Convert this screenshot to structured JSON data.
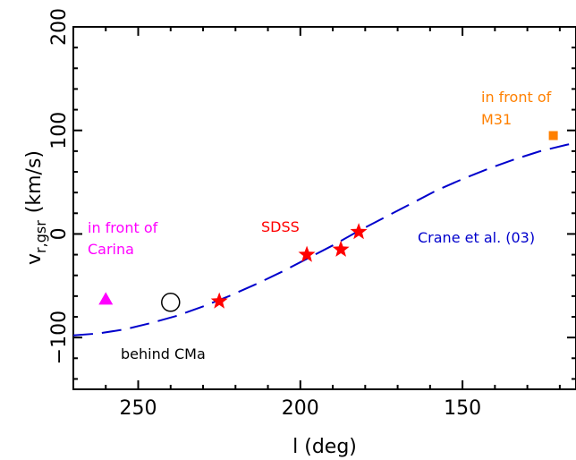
{
  "chart_data": {
    "type": "scatter",
    "xlabel": "l (deg)",
    "ylabel_main": "v",
    "ylabel_sub": "r,gsr",
    "ylabel_unit": "(km/s)",
    "xlim": [
      270,
      115
    ],
    "ylim": [
      -150,
      200
    ],
    "x_ticks": [
      250,
      200,
      150
    ],
    "y_ticks": [
      -100,
      0,
      100,
      200
    ],
    "x_tick_labels": [
      "250",
      "200",
      "150"
    ],
    "y_tick_labels": [
      "−100",
      "0",
      "100",
      "200"
    ],
    "grid": false,
    "series": [
      {
        "name": "SDSS",
        "marker": "star",
        "color": "#ff0000",
        "points": [
          {
            "x": 225,
            "y": -65
          },
          {
            "x": 198,
            "y": -20
          },
          {
            "x": 187.5,
            "y": -15
          },
          {
            "x": 182,
            "y": 2
          }
        ]
      },
      {
        "name": "in front of Carina",
        "marker": "triangle",
        "color": "#ff00ff",
        "points": [
          {
            "x": 260,
            "y": -63
          }
        ]
      },
      {
        "name": "behind CMa",
        "marker": "open-circle",
        "color": "#000000",
        "points": [
          {
            "x": 240,
            "y": -66
          }
        ]
      },
      {
        "name": "in front of M31",
        "marker": "square",
        "color": "#ff8000",
        "points": [
          {
            "x": 122,
            "y": 95
          }
        ]
      }
    ],
    "model_curve": {
      "name": "Crane et al. (03)",
      "style": "dashed",
      "color": "#0000cc",
      "points": [
        {
          "x": 270,
          "y": -98
        },
        {
          "x": 262,
          "y": -96
        },
        {
          "x": 254,
          "y": -92
        },
        {
          "x": 246,
          "y": -86
        },
        {
          "x": 238,
          "y": -79
        },
        {
          "x": 230,
          "y": -70
        },
        {
          "x": 222,
          "y": -60
        },
        {
          "x": 214,
          "y": -49
        },
        {
          "x": 206,
          "y": -37
        },
        {
          "x": 198,
          "y": -24
        },
        {
          "x": 190,
          "y": -11
        },
        {
          "x": 182,
          "y": 3
        },
        {
          "x": 174,
          "y": 16
        },
        {
          "x": 166,
          "y": 29
        },
        {
          "x": 158,
          "y": 42
        },
        {
          "x": 150,
          "y": 53
        },
        {
          "x": 142,
          "y": 63
        },
        {
          "x": 134,
          "y": 72
        },
        {
          "x": 126,
          "y": 80
        },
        {
          "x": 118,
          "y": 86
        },
        {
          "x": 115,
          "y": 88
        }
      ]
    },
    "annotations": [
      {
        "key": "carina_1",
        "text": "in front of",
        "color": "#ff00ff"
      },
      {
        "key": "carina_2",
        "text": "Carina",
        "color": "#ff00ff"
      },
      {
        "key": "cma",
        "text": "behind CMa",
        "color": "#000000"
      },
      {
        "key": "sdss",
        "text": "SDSS",
        "color": "#ff0000"
      },
      {
        "key": "crane",
        "text": "Crane et al. (03)",
        "color": "#0000cc"
      },
      {
        "key": "m31_1",
        "text": "in front of",
        "color": "#ff8000"
      },
      {
        "key": "m31_2",
        "text": "M31",
        "color": "#ff8000"
      }
    ]
  }
}
